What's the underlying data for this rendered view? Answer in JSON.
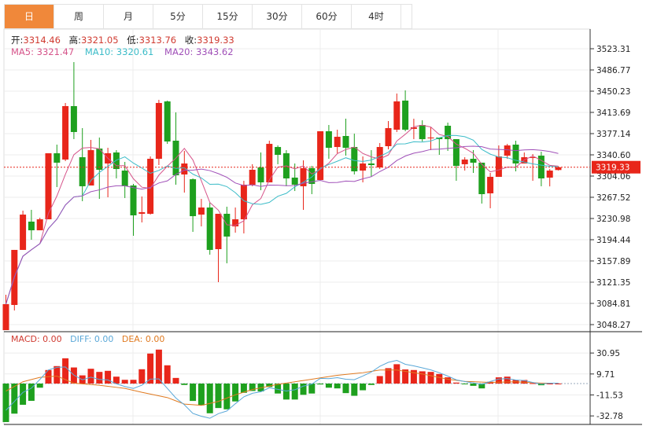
{
  "tabs": [
    {
      "label": "日",
      "active": true
    },
    {
      "label": "周"
    },
    {
      "label": "月"
    },
    {
      "label": "5分"
    },
    {
      "label": "15分"
    },
    {
      "label": "30分"
    },
    {
      "label": "60分"
    },
    {
      "label": "4时"
    }
  ],
  "ohlc": {
    "open_label": "开:",
    "open": "3314.46",
    "high_label": "高:",
    "high": "3321.05",
    "low_label": "低:",
    "low": "3313.76",
    "close_label": "收:",
    "close": "3319.33"
  },
  "ma": {
    "ma5_label": "MA5: 3321.47",
    "ma10_label": "MA10: 3320.61",
    "ma20_label": "MA20: 3343.62"
  },
  "macd_legend": {
    "macd": "MACD: 0.00",
    "diff": "DIFF: 0.00",
    "dea": "DEA: 0.00"
  },
  "colors": {
    "up": "#e8261a",
    "down": "#1ea01e",
    "ma5": "#d6548a",
    "ma10": "#3cbcc8",
    "ma20": "#a050b8",
    "diff": "#5aa8d8",
    "dea": "#e07a20",
    "active_tab": "#f0883a"
  },
  "chart_data": [
    {
      "type": "candlestick",
      "y_ticks": [
        "3523.31",
        "3486.77",
        "3450.23",
        "3413.69",
        "3377.14",
        "3340.60",
        "3304.06",
        "3267.52",
        "3230.98",
        "3194.44",
        "3157.89",
        "3121.35",
        "3084.81",
        "3048.27"
      ],
      "ylim": [
        3048.27,
        3523.31
      ],
      "last_price": "3319.33",
      "grid": true,
      "moving_averages": [
        5,
        10,
        20
      ],
      "ohlc": [
        [
          3038.8,
          3099.7,
          3038.8,
          3083.5
        ],
        [
          3082.1,
          3176.9,
          3072.6,
          3176.9
        ],
        [
          3176.9,
          3244.5,
          3176.9,
          3237.7
        ],
        [
          3225.6,
          3245.9,
          3194.4,
          3210.7
        ],
        [
          3210.7,
          3232.3,
          3210.7,
          3229.6
        ],
        [
          3229.6,
          3343.3,
          3229.6,
          3343.3
        ],
        [
          3343.3,
          3358.2,
          3285.1,
          3327.1
        ],
        [
          3332.5,
          3429.9,
          3329.8,
          3424.5
        ],
        [
          3424.5,
          3500.3,
          3367.7,
          3379.9
        ],
        [
          3336.5,
          3386.6,
          3260.8,
          3286.5
        ],
        [
          3287.8,
          3366.3,
          3287.8,
          3348.7
        ],
        [
          3351.4,
          3370.4,
          3264.8,
          3314.9
        ],
        [
          3325.7,
          3352.8,
          3267.5,
          3343.3
        ],
        [
          3344.7,
          3348.7,
          3300.0,
          3316.2
        ],
        [
          3313.5,
          3328.4,
          3266.2,
          3286.5
        ],
        [
          3287.8,
          3290.5,
          3201.2,
          3236.4
        ],
        [
          3239.1,
          3268.9,
          3224.2,
          3241.8
        ],
        [
          3239.1,
          3337.9,
          3237.7,
          3333.8
        ],
        [
          3333.8,
          3435.3,
          3323.0,
          3429.9
        ],
        [
          3432.6,
          3434.0,
          3359.5,
          3363.6
        ],
        [
          3365.0,
          3413.7,
          3289.2,
          3305.4
        ],
        [
          3306.8,
          3347.4,
          3275.6,
          3325.7
        ],
        [
          3298.6,
          3300.0,
          3208.0,
          3235.0
        ],
        [
          3237.7,
          3264.8,
          3217.4,
          3249.9
        ],
        [
          3249.9,
          3258.1,
          3168.7,
          3176.9
        ],
        [
          3178.2,
          3239.1,
          3121.4,
          3239.1
        ],
        [
          3239.1,
          3251.3,
          3153.8,
          3199.9
        ],
        [
          3217.4,
          3249.9,
          3206.6,
          3229.6
        ],
        [
          3229.6,
          3295.9,
          3205.3,
          3289.2
        ],
        [
          3289.2,
          3324.4,
          3286.5,
          3314.9
        ],
        [
          3318.9,
          3344.7,
          3279.7,
          3293.2
        ],
        [
          3293.2,
          3364.9,
          3293.2,
          3359.5
        ],
        [
          3354.1,
          3356.8,
          3324.4,
          3340.6
        ],
        [
          3343.3,
          3348.7,
          3286.5,
          3300.0
        ],
        [
          3301.4,
          3325.7,
          3278.3,
          3289.2
        ],
        [
          3286.5,
          3331.1,
          3245.9,
          3317.6
        ],
        [
          3317.6,
          3321.6,
          3272.9,
          3290.5
        ],
        [
          3297.3,
          3381.2,
          3297.3,
          3381.2
        ],
        [
          3381.2,
          3392.0,
          3333.8,
          3352.7
        ],
        [
          3354.1,
          3383.9,
          3343.3,
          3371.7
        ],
        [
          3373.1,
          3402.8,
          3339.2,
          3352.7
        ],
        [
          3354.1,
          3377.1,
          3306.8,
          3312.2
        ],
        [
          3313.5,
          3337.9,
          3293.2,
          3325.7
        ],
        [
          3325.7,
          3348.7,
          3302.7,
          3323.0
        ],
        [
          3318.9,
          3360.9,
          3316.2,
          3354.1
        ],
        [
          3355.5,
          3398.8,
          3350.1,
          3386.6
        ],
        [
          3383.9,
          3446.2,
          3379.9,
          3432.6
        ],
        [
          3434.0,
          3451.6,
          3381.2,
          3383.9
        ],
        [
          3385.3,
          3402.8,
          3367.6,
          3388.0
        ],
        [
          3392.0,
          3400.1,
          3363.6,
          3367.6
        ],
        [
          3369.0,
          3388.0,
          3348.7,
          3370.4
        ],
        [
          3370.4,
          3370.4,
          3340.6,
          3367.6
        ],
        [
          3390.7,
          3396.1,
          3347.4,
          3367.6
        ],
        [
          3367.6,
          3367.6,
          3295.9,
          3321.6
        ],
        [
          3324.4,
          3336.5,
          3313.5,
          3332.5
        ],
        [
          3333.8,
          3348.7,
          3309.5,
          3327.1
        ],
        [
          3327.1,
          3327.1,
          3256.7,
          3272.9
        ],
        [
          3274.3,
          3309.5,
          3248.6,
          3302.7
        ],
        [
          3302.7,
          3356.8,
          3302.7,
          3337.9
        ],
        [
          3339.2,
          3359.5,
          3333.8,
          3356.8
        ],
        [
          3358.2,
          3364.9,
          3312.2,
          3325.7
        ],
        [
          3325.7,
          3344.7,
          3325.7,
          3336.5
        ],
        [
          3335.2,
          3341.9,
          3295.9,
          3336.5
        ],
        [
          3339.2,
          3346.0,
          3286.5,
          3300.0
        ],
        [
          3301.4,
          3316.2,
          3286.3,
          3313.5
        ],
        [
          3314.46,
          3321.05,
          3313.76,
          3319.33
        ]
      ]
    },
    {
      "type": "bar",
      "y_ticks": [
        "30.95",
        "9.71",
        "-11.53",
        "-32.78"
      ],
      "macd_hist": [
        -39,
        -30.5,
        -21.5,
        -17.5,
        -4.2,
        13.7,
        17.7,
        25.6,
        16.3,
        8.3,
        15.0,
        11.8,
        12.9,
        7.0,
        3.8,
        3.8,
        14.5,
        30.4,
        34.4,
        18.5,
        5.7,
        -1.4,
        -17.6,
        -22.1,
        -30.1,
        -24.8,
        -26.1,
        -18.1,
        -9.4,
        -7.5,
        -8.0,
        -3.5,
        -10.1,
        -16.2,
        -16.2,
        -11.4,
        -10.1,
        -0.9,
        -4.2,
        -4.9,
        -9.7,
        -12.4,
        -6.8,
        -1.4,
        7.6,
        15.6,
        19.6,
        14.3,
        13.7,
        12.4,
        11.8,
        9.7,
        6.3,
        1.0,
        -0.4,
        -2.3,
        -4.9,
        1.8,
        6.3,
        7.0,
        3.6,
        3.6,
        0.4,
        -1.7,
        0,
        0
      ],
      "dea_points": [
        [
          1,
          -7.6
        ],
        [
          3,
          1.8
        ],
        [
          5,
          6.3
        ],
        [
          7,
          7.6
        ],
        [
          9,
          0.4
        ],
        [
          12,
          -1.7
        ],
        [
          15,
          -4.9
        ],
        [
          17,
          -8.9
        ],
        [
          20,
          -14.2
        ],
        [
          22,
          -20.8
        ],
        [
          24,
          -22.1
        ],
        [
          26,
          -18.1
        ],
        [
          28,
          -11.4
        ],
        [
          30,
          -6.1
        ],
        [
          33,
          -0.8
        ],
        [
          36,
          3.1
        ],
        [
          40,
          8.4
        ],
        [
          43,
          11.0
        ],
        [
          45,
          13.7
        ],
        [
          47,
          13.7
        ],
        [
          50,
          9.7
        ],
        [
          53,
          4.4
        ],
        [
          55,
          2.2
        ],
        [
          58,
          1.2
        ],
        [
          61,
          1.8
        ],
        [
          64,
          0.4
        ],
        [
          66,
          0.4
        ]
      ]
    }
  ]
}
